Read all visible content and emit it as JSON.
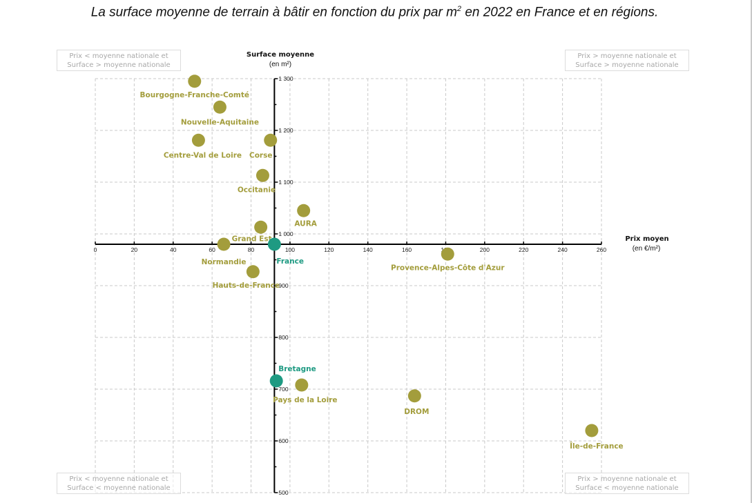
{
  "title_main": "La surface moyenne de terrain à bâtir en fonction du prix par m",
  "title_sup": "2",
  "title_end": " en 2022 en France et en régions.",
  "quadrants": {
    "top_left": [
      "Prix < moyenne nationale et",
      "Surface > moyenne nationale"
    ],
    "top_right": [
      "Prix > moyenne nationale et",
      "Surface > moyenne nationale"
    ],
    "bottom_left": [
      "Prix < moyenne nationale et",
      "Surface < moyenne nationale"
    ],
    "bottom_right": [
      "Prix > moyenne nationale et",
      "Surface < moyenne nationale"
    ]
  },
  "colors": {
    "region": "#a39d3c",
    "highlight": "#1e9a82",
    "grid": "#c9c9c9",
    "axis": "#000000"
  },
  "chart_data": {
    "type": "scatter",
    "title": "La surface moyenne de terrain à bâtir en fonction du prix par m² en 2022 en France et en régions.",
    "xlabel": "Prix moyen",
    "xlabel_unit": "(en €/m²)",
    "ylabel": "Surface moyenne",
    "ylabel_unit": "(en m²)",
    "xlim": [
      0,
      260
    ],
    "ylim": [
      500,
      1300
    ],
    "x_ticks": [
      0,
      20,
      40,
      60,
      80,
      100,
      120,
      140,
      160,
      180,
      200,
      220,
      240,
      260
    ],
    "y_ticks": [
      500,
      600,
      700,
      800,
      900,
      1000,
      1100,
      1200,
      1300
    ],
    "y_tick_labels": [
      "500",
      "600",
      "700",
      "800",
      "900",
      "1 000",
      "1 100",
      "1 200",
      "1 300"
    ],
    "axes_cross": {
      "x": 92,
      "y": 980
    },
    "grid": true,
    "points": [
      {
        "name": "Bourgogne-Franche-Comté",
        "x": 51,
        "y": 1295,
        "group": "region"
      },
      {
        "name": "Nouvelle-Aquitaine",
        "x": 64,
        "y": 1245,
        "group": "region"
      },
      {
        "name": "Centre-Val de Loire",
        "x": 53,
        "y": 1181,
        "group": "region"
      },
      {
        "name": "Corse",
        "x": 90,
        "y": 1181,
        "group": "region"
      },
      {
        "name": "Occitanie",
        "x": 86,
        "y": 1113,
        "group": "region"
      },
      {
        "name": "AURA",
        "x": 107,
        "y": 1045,
        "group": "region"
      },
      {
        "name": "Grand Est",
        "x": 85,
        "y": 1013,
        "group": "region"
      },
      {
        "name": "Normandie",
        "x": 66,
        "y": 980,
        "group": "region"
      },
      {
        "name": "France",
        "x": 92,
        "y": 980,
        "group": "highlight"
      },
      {
        "name": "Hauts-de-France",
        "x": 81,
        "y": 927,
        "group": "region"
      },
      {
        "name": "Provence-Alpes-Côte d'Azur",
        "x": 181,
        "y": 961,
        "group": "region"
      },
      {
        "name": "Bretagne",
        "x": 93,
        "y": 716,
        "group": "highlight"
      },
      {
        "name": "Pays de la Loire",
        "x": 106,
        "y": 708,
        "group": "region"
      },
      {
        "name": "DROM",
        "x": 164,
        "y": 687,
        "group": "region"
      },
      {
        "name": "Île-de-France",
        "x": 255,
        "y": 620,
        "group": "region"
      }
    ]
  }
}
